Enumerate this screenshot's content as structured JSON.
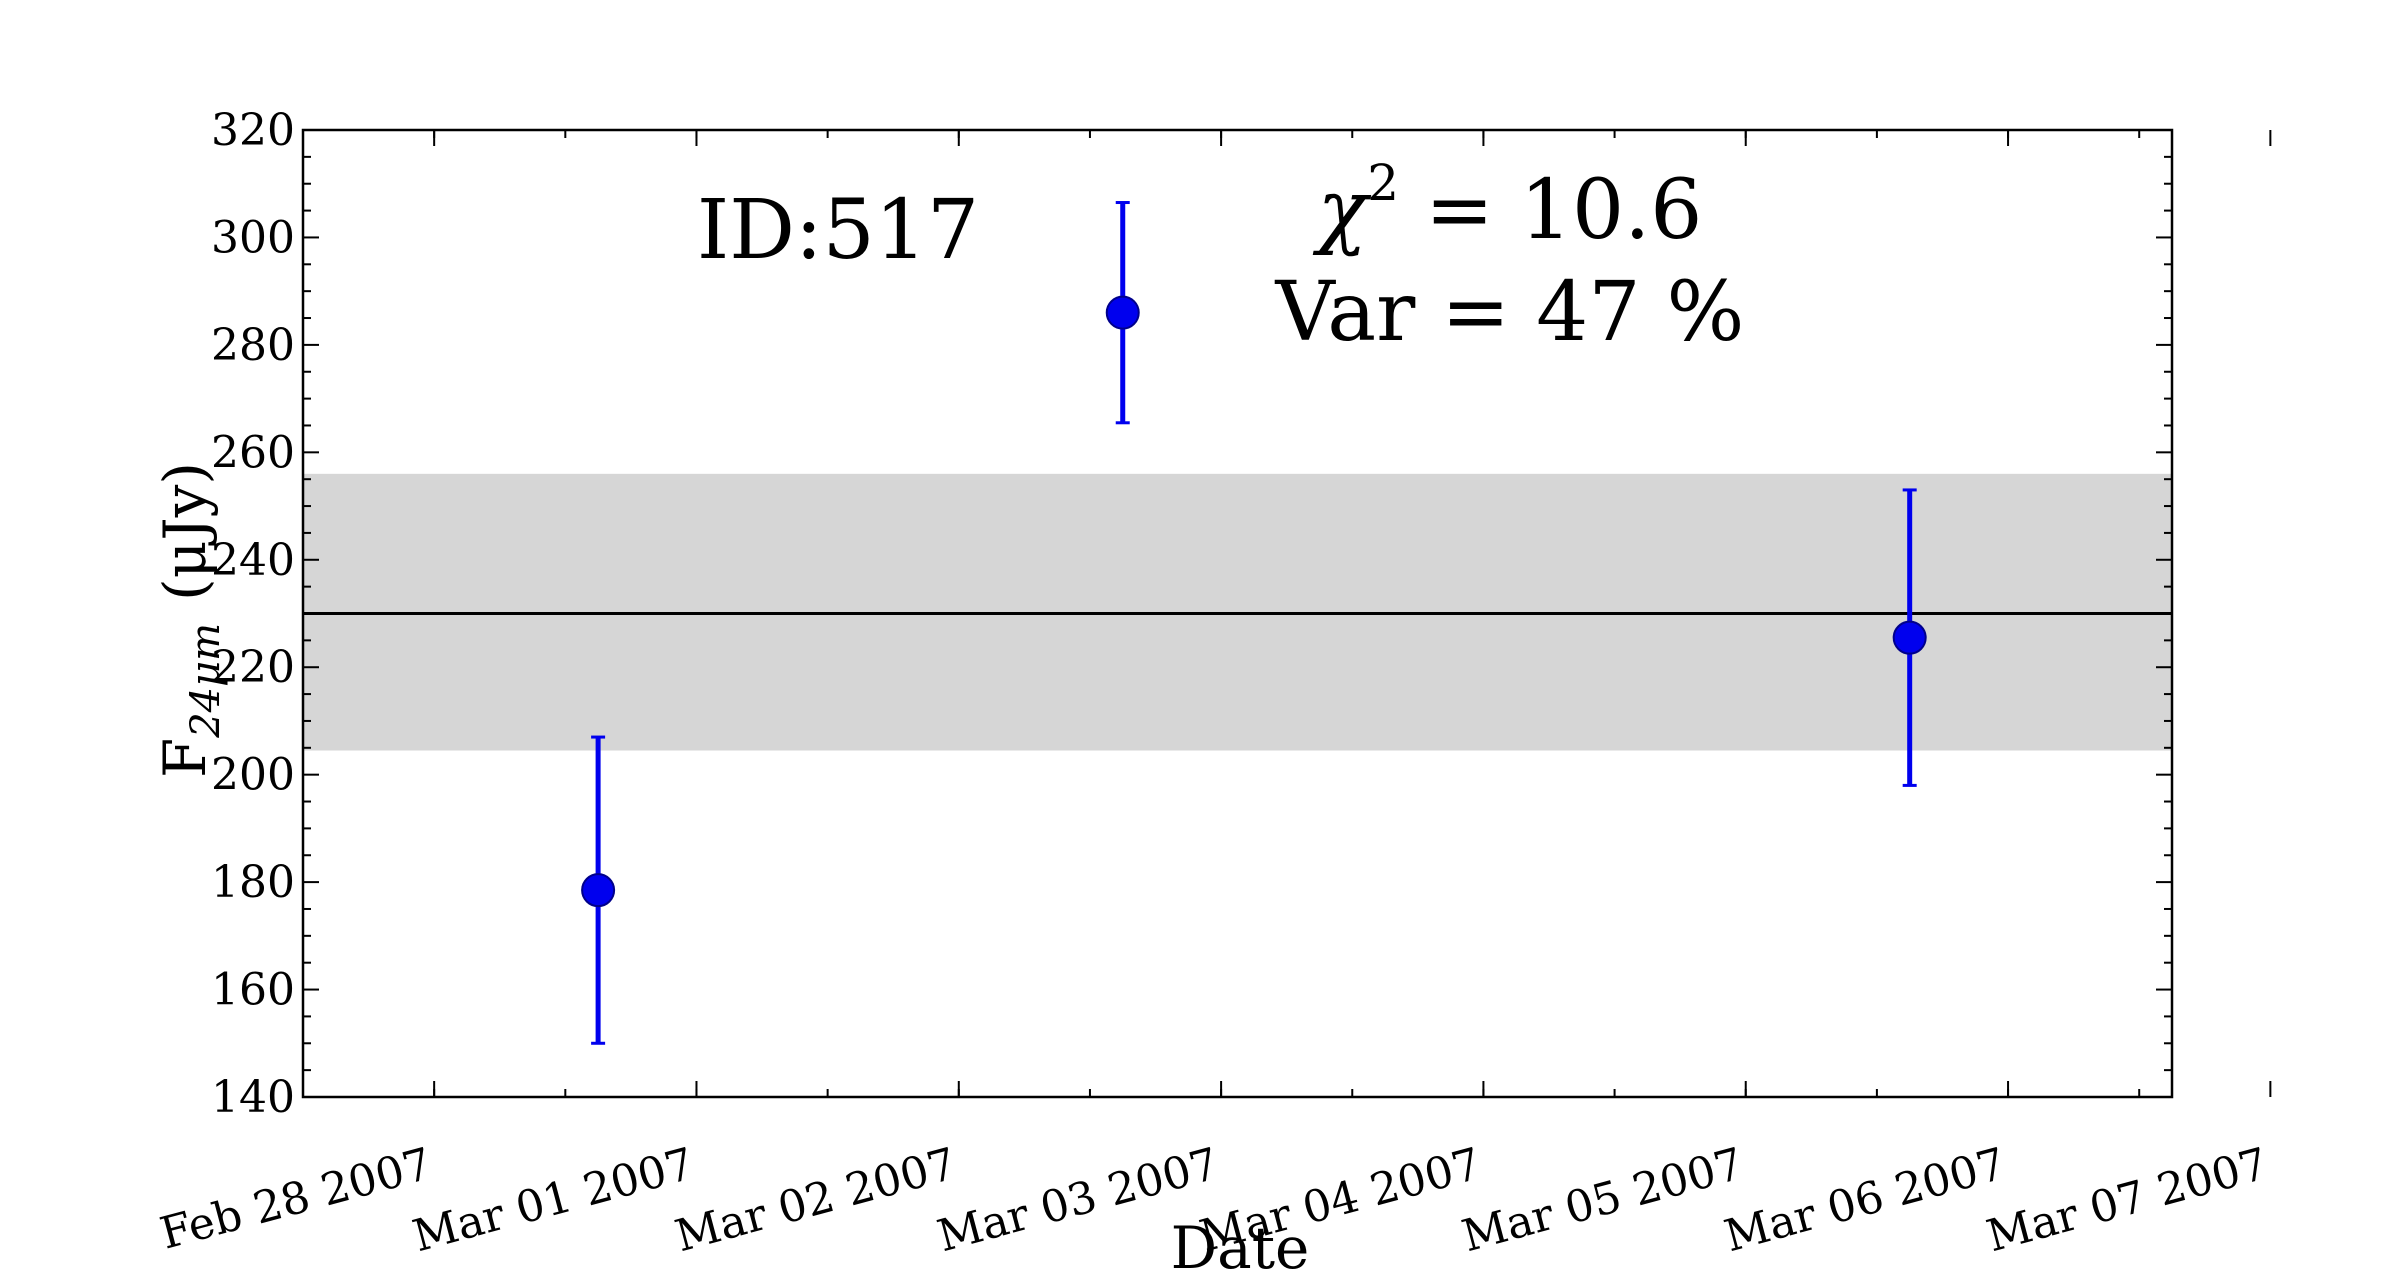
{
  "chart_data": {
    "type": "scatter",
    "title": "",
    "xlabel": "Date",
    "ylabel": {
      "prefix": "F",
      "subscript": "24μm",
      "unit": "(μJy)"
    },
    "x_ticks": [
      "Feb 28 2007",
      "Mar 01 2007",
      "Mar 02 2007",
      "Mar 03 2007",
      "Mar 04 2007",
      "Mar 05 2007",
      "Mar 06 2007",
      "Mar 07 2007"
    ],
    "xlim": [
      "2007-02-27T21:00",
      "2007-03-07T00:00"
    ],
    "ylim": [
      140,
      320
    ],
    "y_ticks": [
      "140",
      "160",
      "180",
      "200",
      "220",
      "240",
      "260",
      "280",
      "300",
      "320"
    ],
    "series": [
      {
        "color": "#0000ee",
        "points": [
          {
            "date": "2007-03-01T00:00",
            "y": 178.5,
            "yerr_low": 150,
            "yerr_high": 207
          },
          {
            "date": "2007-03-03T00:00",
            "y": 286,
            "yerr_low": 265.5,
            "yerr_high": 306.5
          },
          {
            "date": "2007-03-06T00:00",
            "y": 225.5,
            "yerr_low": 198,
            "yerr_high": 253
          }
        ]
      }
    ],
    "mean_line": {
      "y": 230,
      "color": "#000000"
    },
    "band": {
      "y_low": 204.5,
      "y_high": 256,
      "color": "#d6d6d6"
    },
    "annotations": {
      "id_text": "ID:517",
      "chi": {
        "symbol": "χ",
        "exp": "2",
        "rest": " = 10.6"
      },
      "var_text": "Var = 47 %"
    },
    "grid": false
  }
}
